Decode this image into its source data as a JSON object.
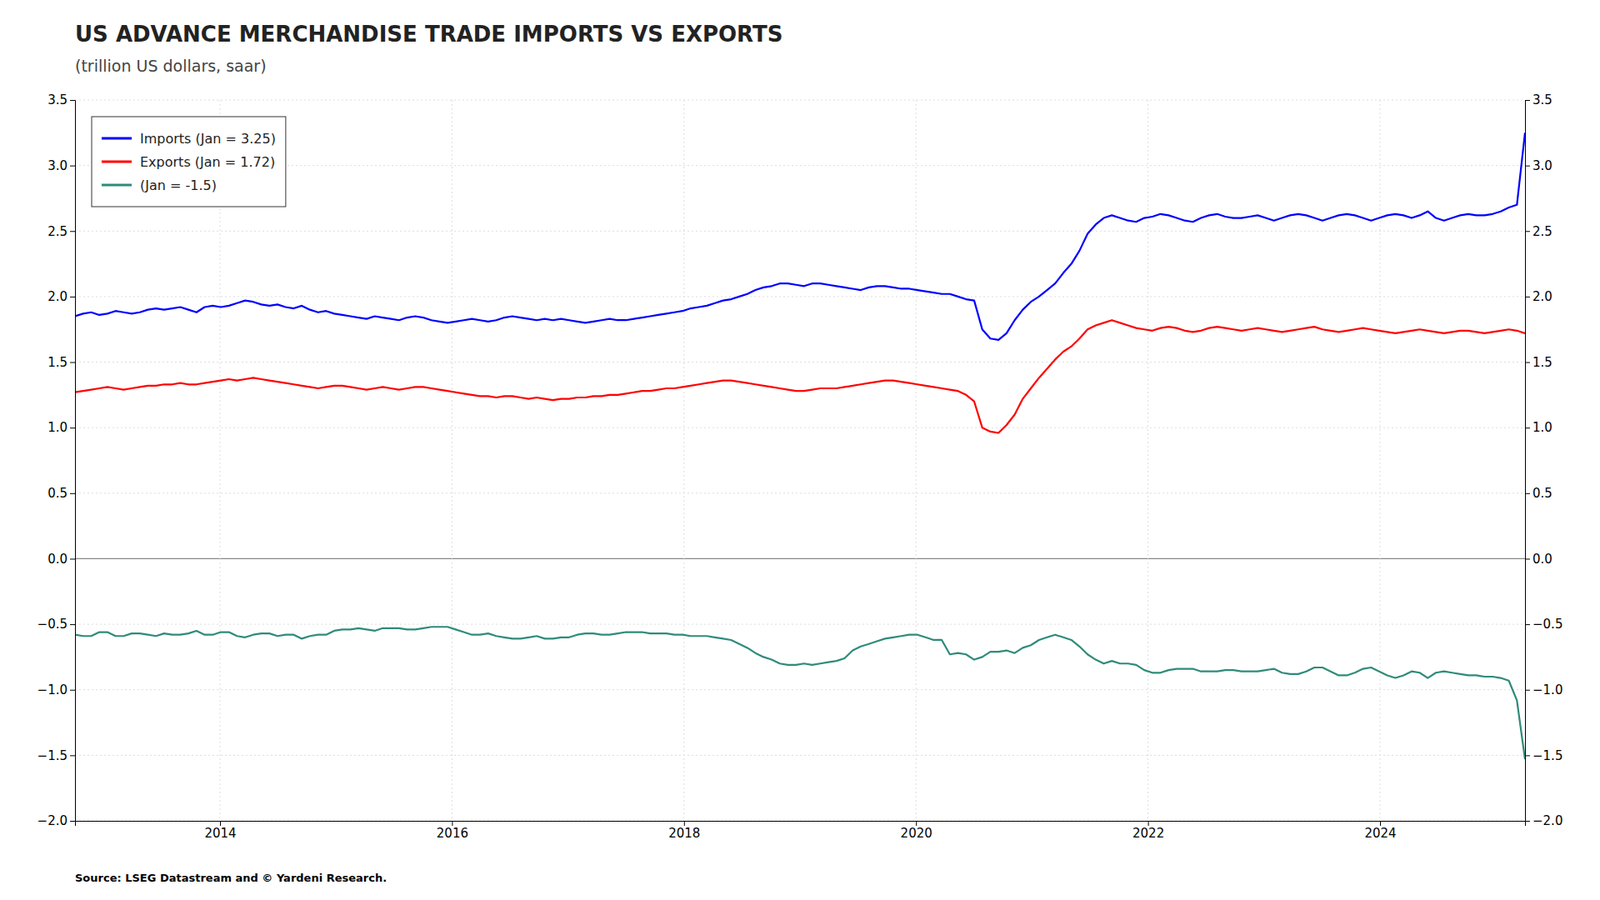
{
  "chart_data": {
    "type": "line",
    "title": "US ADVANCE MERCHANDISE TRADE IMPORTS VS EXPORTS",
    "subtitle": "(trillion US dollars, saar)",
    "annotations": [
      {
        "text": "Source: LSEG Datastream and © Yardeni Research."
      }
    ],
    "grid": true,
    "legend": "upper left",
    "xlim": [
      2012.75,
      2025.25
    ],
    "xticks": [
      2014,
      2016,
      2018,
      2020,
      2022,
      2024
    ],
    "ylim": [
      -2.0,
      3.5
    ],
    "yticks": [
      {
        "value": -2.0,
        "label": "−2.0"
      },
      {
        "value": -1.5,
        "label": "−1.5"
      },
      {
        "value": -1.0,
        "label": "−1.0"
      },
      {
        "value": -0.5,
        "label": "−0.5"
      },
      {
        "value": 0.0,
        "label": "0.0"
      },
      0.5,
      {
        "value": 1.0,
        "label": "1.0"
      },
      1.5,
      {
        "value": 2.0,
        "label": "2.0"
      },
      2.5,
      {
        "value": 3.0,
        "label": "3.0"
      },
      3.5
    ],
    "y2lim": [
      -2.0,
      3.5
    ],
    "y2ticks": [
      {
        "value": -2.0,
        "label": "−2.0"
      },
      {
        "value": -1.5,
        "label": "−1.5"
      },
      {
        "value": -1.0,
        "label": "−1.0"
      },
      {
        "value": -0.5,
        "label": "−0.5"
      },
      {
        "value": 0.0,
        "label": "0.0"
      },
      0.5,
      {
        "value": 1.0,
        "label": "1.0"
      },
      1.5,
      {
        "value": 2.0,
        "label": "2.0"
      },
      2.5,
      {
        "value": 3.0,
        "label": "3.0"
      },
      3.5
    ],
    "x": [
      2012.75,
      2012.8198,
      2012.8897,
      2012.9595,
      2013.0293,
      2013.0992,
      2013.169,
      2013.2388,
      2013.3087,
      2013.3785,
      2013.4483,
      2013.5182,
      2013.588,
      2013.6578,
      2013.7277,
      2013.7975,
      2013.8673,
      2013.9372,
      2014.007,
      2014.0768,
      2014.1466,
      2014.2165,
      2014.2863,
      2014.3561,
      2014.426,
      2014.4958,
      2014.5656,
      2014.6355,
      2014.7053,
      2014.7751,
      2014.845,
      2014.9148,
      2014.9846,
      2015.0545,
      2015.1243,
      2015.1941,
      2015.264,
      2015.3338,
      2015.4036,
      2015.4735,
      2015.5433,
      2015.6131,
      2015.683,
      2015.7528,
      2015.8226,
      2015.8925,
      2015.9623,
      2016.0321,
      2016.102,
      2016.1718,
      2016.2416,
      2016.3115,
      2016.3813,
      2016.4511,
      2016.5209,
      2016.5908,
      2016.6606,
      2016.7304,
      2016.8003,
      2016.8701,
      2016.9399,
      2017.0098,
      2017.0796,
      2017.1494,
      2017.2193,
      2017.2891,
      2017.3589,
      2017.4288,
      2017.4986,
      2017.5684,
      2017.6383,
      2017.7081,
      2017.7779,
      2017.8478,
      2017.9176,
      2017.9874,
      2018.0573,
      2018.1271,
      2018.1969,
      2018.2668,
      2018.3366,
      2018.4064,
      2018.4763,
      2018.5461,
      2018.6159,
      2018.6858,
      2018.7556,
      2018.8254,
      2018.8953,
      2018.9651,
      2019.0349,
      2019.1047,
      2019.1746,
      2019.2444,
      2019.3142,
      2019.3841,
      2019.4539,
      2019.5237,
      2019.5936,
      2019.6634,
      2019.7332,
      2019.8031,
      2019.8729,
      2019.9427,
      2020.0126,
      2020.0824,
      2020.1522,
      2020.2221,
      2020.2919,
      2020.3617,
      2020.4316,
      2020.5014,
      2020.5712,
      2020.6411,
      2020.7109,
      2020.7807,
      2020.8506,
      2020.9204,
      2020.9902,
      2021.0601,
      2021.1299,
      2021.1997,
      2021.2696,
      2021.3394,
      2021.4092,
      2021.4791,
      2021.5489,
      2021.6187,
      2021.6885,
      2021.7584,
      2021.8282,
      2021.898,
      2021.9679,
      2022.0377,
      2022.1075,
      2022.1774,
      2022.2472,
      2022.317,
      2022.3869,
      2022.4567,
      2022.5265,
      2022.5964,
      2022.6662,
      2022.736,
      2022.8059,
      2022.8757,
      2022.9455,
      2023.0154,
      2023.0852,
      2023.155,
      2023.2249,
      2023.2947,
      2023.3645,
      2023.4344,
      2023.5042,
      2023.574,
      2023.6439,
      2023.7137,
      2023.7835,
      2023.8534,
      2023.9232,
      2023.993,
      2024.0628,
      2024.1327,
      2024.2025,
      2024.2723,
      2024.3422,
      2024.412,
      2024.4818,
      2024.5517,
      2024.6215,
      2024.6913,
      2024.7612,
      2024.831,
      2024.9008,
      2024.9707,
      2025.0405,
      2025.1103,
      2025.1802,
      2025.25
    ],
    "series": [
      {
        "name": "Imports (Jan = 3.25)",
        "color": "#0000ff",
        "values": [
          1.85,
          1.87,
          1.88,
          1.86,
          1.87,
          1.89,
          1.88,
          1.87,
          1.88,
          1.9,
          1.91,
          1.9,
          1.91,
          1.92,
          1.9,
          1.88,
          1.92,
          1.93,
          1.92,
          1.93,
          1.95,
          1.97,
          1.96,
          1.94,
          1.93,
          1.94,
          1.92,
          1.91,
          1.93,
          1.9,
          1.88,
          1.89,
          1.87,
          1.86,
          1.85,
          1.84,
          1.83,
          1.85,
          1.84,
          1.83,
          1.82,
          1.84,
          1.85,
          1.84,
          1.82,
          1.81,
          1.8,
          1.81,
          1.82,
          1.83,
          1.82,
          1.81,
          1.82,
          1.84,
          1.85,
          1.84,
          1.83,
          1.82,
          1.83,
          1.82,
          1.83,
          1.82,
          1.81,
          1.8,
          1.81,
          1.82,
          1.83,
          1.82,
          1.82,
          1.83,
          1.84,
          1.85,
          1.86,
          1.87,
          1.88,
          1.89,
          1.91,
          1.92,
          1.93,
          1.95,
          1.97,
          1.98,
          2.0,
          2.02,
          2.05,
          2.07,
          2.08,
          2.1,
          2.1,
          2.09,
          2.08,
          2.1,
          2.1,
          2.09,
          2.08,
          2.07,
          2.06,
          2.05,
          2.07,
          2.08,
          2.08,
          2.07,
          2.06,
          2.06,
          2.05,
          2.04,
          2.03,
          2.02,
          2.02,
          2.0,
          1.98,
          1.97,
          1.75,
          1.68,
          1.67,
          1.72,
          1.82,
          1.9,
          1.96,
          2.0,
          2.05,
          2.1,
          2.18,
          2.25,
          2.35,
          2.48,
          2.55,
          2.6,
          2.62,
          2.6,
          2.58,
          2.57,
          2.6,
          2.61,
          2.63,
          2.62,
          2.6,
          2.58,
          2.57,
          2.6,
          2.62,
          2.63,
          2.61,
          2.6,
          2.6,
          2.61,
          2.62,
          2.6,
          2.58,
          2.6,
          2.62,
          2.63,
          2.62,
          2.6,
          2.58,
          2.6,
          2.62,
          2.63,
          2.62,
          2.6,
          2.58,
          2.6,
          2.62,
          2.63,
          2.62,
          2.6,
          2.62,
          2.65,
          2.6,
          2.58,
          2.6,
          2.62,
          2.63,
          2.62,
          2.62,
          2.63,
          2.65,
          2.68,
          2.7,
          3.25
        ]
      },
      {
        "name": "Exports (Jan = 1.72)",
        "color": "#ff0000",
        "values": [
          1.27,
          1.28,
          1.29,
          1.3,
          1.31,
          1.3,
          1.29,
          1.3,
          1.31,
          1.32,
          1.32,
          1.33,
          1.33,
          1.34,
          1.33,
          1.33,
          1.34,
          1.35,
          1.36,
          1.37,
          1.36,
          1.37,
          1.38,
          1.37,
          1.36,
          1.35,
          1.34,
          1.33,
          1.32,
          1.31,
          1.3,
          1.31,
          1.32,
          1.32,
          1.31,
          1.3,
          1.29,
          1.3,
          1.31,
          1.3,
          1.29,
          1.3,
          1.31,
          1.31,
          1.3,
          1.29,
          1.28,
          1.27,
          1.26,
          1.25,
          1.24,
          1.24,
          1.23,
          1.24,
          1.24,
          1.23,
          1.22,
          1.23,
          1.22,
          1.21,
          1.22,
          1.22,
          1.23,
          1.23,
          1.24,
          1.24,
          1.25,
          1.25,
          1.26,
          1.27,
          1.28,
          1.28,
          1.29,
          1.3,
          1.3,
          1.31,
          1.32,
          1.33,
          1.34,
          1.35,
          1.36,
          1.36,
          1.35,
          1.34,
          1.33,
          1.32,
          1.31,
          1.3,
          1.29,
          1.28,
          1.28,
          1.29,
          1.3,
          1.3,
          1.3,
          1.31,
          1.32,
          1.33,
          1.34,
          1.35,
          1.36,
          1.36,
          1.35,
          1.34,
          1.33,
          1.32,
          1.31,
          1.3,
          1.29,
          1.28,
          1.25,
          1.2,
          1.0,
          0.97,
          0.96,
          1.02,
          1.1,
          1.22,
          1.3,
          1.38,
          1.45,
          1.52,
          1.58,
          1.62,
          1.68,
          1.75,
          1.78,
          1.8,
          1.82,
          1.8,
          1.78,
          1.76,
          1.75,
          1.74,
          1.76,
          1.77,
          1.76,
          1.74,
          1.73,
          1.74,
          1.76,
          1.77,
          1.76,
          1.75,
          1.74,
          1.75,
          1.76,
          1.75,
          1.74,
          1.73,
          1.74,
          1.75,
          1.76,
          1.77,
          1.75,
          1.74,
          1.73,
          1.74,
          1.75,
          1.76,
          1.75,
          1.74,
          1.73,
          1.72,
          1.73,
          1.74,
          1.75,
          1.74,
          1.73,
          1.72,
          1.73,
          1.74,
          1.74,
          1.73,
          1.72,
          1.73,
          1.74,
          1.75,
          1.74,
          1.72
        ]
      },
      {
        "name": "(Jan = -1.5)",
        "color": "#2e8b7a",
        "values": [
          -0.58,
          -0.59,
          -0.59,
          -0.56,
          -0.56,
          -0.59,
          -0.59,
          -0.57,
          -0.57,
          -0.58,
          -0.59,
          -0.57,
          -0.58,
          -0.58,
          -0.57,
          -0.55,
          -0.58,
          -0.58,
          -0.56,
          -0.56,
          -0.59,
          -0.6,
          -0.58,
          -0.57,
          -0.57,
          -0.59,
          -0.58,
          -0.58,
          -0.61,
          -0.59,
          -0.58,
          -0.58,
          -0.55,
          -0.54,
          -0.54,
          -0.53,
          -0.54,
          -0.55,
          -0.53,
          -0.53,
          -0.53,
          -0.54,
          -0.54,
          -0.53,
          -0.52,
          -0.52,
          -0.52,
          -0.54,
          -0.56,
          -0.58,
          -0.58,
          -0.57,
          -0.59,
          -0.6,
          -0.61,
          -0.61,
          -0.6,
          -0.59,
          -0.61,
          -0.61,
          -0.6,
          -0.6,
          -0.58,
          -0.57,
          -0.57,
          -0.58,
          -0.58,
          -0.57,
          -0.56,
          -0.56,
          -0.56,
          -0.57,
          -0.57,
          -0.57,
          -0.58,
          -0.58,
          -0.59,
          -0.59,
          -0.59,
          -0.6,
          -0.61,
          -0.62,
          -0.65,
          -0.68,
          -0.72,
          -0.75,
          -0.77,
          -0.8,
          -0.81,
          -0.81,
          -0.8,
          -0.81,
          -0.8,
          -0.79,
          -0.78,
          -0.76,
          -0.7,
          -0.67,
          -0.65,
          -0.63,
          -0.61,
          -0.6,
          -0.59,
          -0.58,
          -0.58,
          -0.6,
          -0.62,
          -0.62,
          -0.73,
          -0.72,
          -0.73,
          -0.77,
          -0.75,
          -0.71,
          -0.71,
          -0.7,
          -0.72,
          -0.68,
          -0.66,
          -0.62,
          -0.6,
          -0.58,
          -0.6,
          -0.62,
          -0.67,
          -0.73,
          -0.77,
          -0.8,
          -0.78,
          -0.8,
          -0.8,
          -0.81,
          -0.85,
          -0.87,
          -0.87,
          -0.85,
          -0.84,
          -0.84,
          -0.84,
          -0.86,
          -0.86,
          -0.86,
          -0.85,
          -0.85,
          -0.86,
          -0.86,
          -0.86,
          -0.85,
          -0.84,
          -0.87,
          -0.88,
          -0.88,
          -0.86,
          -0.83,
          -0.83,
          -0.86,
          -0.89,
          -0.89,
          -0.87,
          -0.84,
          -0.83,
          -0.86,
          -0.89,
          -0.91,
          -0.89,
          -0.86,
          -0.87,
          -0.91,
          -0.87,
          -0.86,
          -0.87,
          -0.88,
          -0.89,
          -0.89,
          -0.9,
          -0.9,
          -0.91,
          -0.93,
          -1.08,
          -1.53
        ]
      }
    ]
  }
}
